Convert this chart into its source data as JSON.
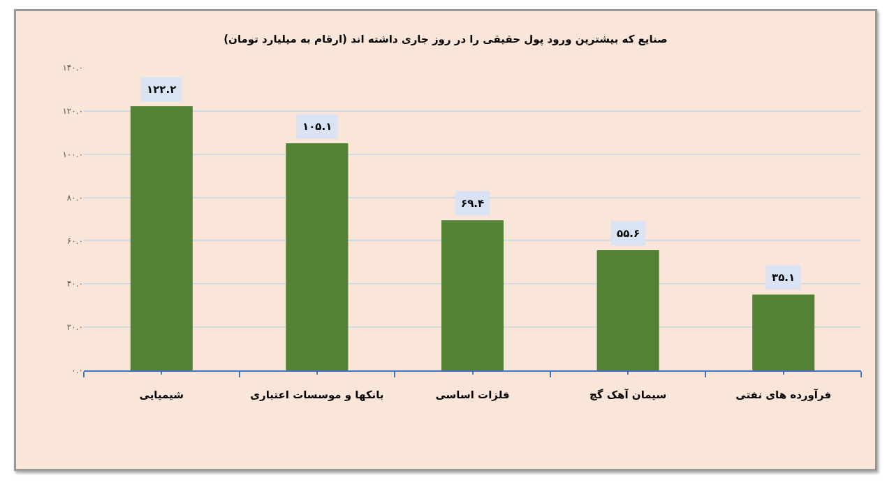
{
  "chart_data": {
    "type": "bar",
    "title": "صنایع که بیشترین ورود پول حقیقی را در روز جاری داشته اند (ارقام به میلیارد تومان)",
    "categories": [
      "شیمیایی",
      "بانکها و موسسات اعتباری",
      "فلزات اساسی",
      "سیمان آهک گچ",
      "فرآورده های نفتی"
    ],
    "values": [
      122.2,
      105.1,
      69.4,
      55.6,
      35.1
    ],
    "color": "#548235",
    "value_labels": [
      "۱۲۲.۲",
      "۱۰۵.۱",
      "۶۹.۴",
      "۵۵.۶",
      "۳۵.۱"
    ],
    "ylim": [
      0,
      140
    ],
    "yticks": [
      {
        "value": 0,
        "label": "۰.۰"
      },
      {
        "value": 20,
        "label": "۲۰.۰"
      },
      {
        "value": 40,
        "label": "۴۰.۰"
      },
      {
        "value": 60,
        "label": "۶۰.۰"
      },
      {
        "value": 80,
        "label": "۸۰.۰"
      },
      {
        "value": 100,
        "label": "۱۰۰.۰"
      },
      {
        "value": 120,
        "label": "۱۲۰.۰"
      },
      {
        "value": 140,
        "label": "۱۴۰.۰"
      }
    ],
    "grid": "y"
  }
}
